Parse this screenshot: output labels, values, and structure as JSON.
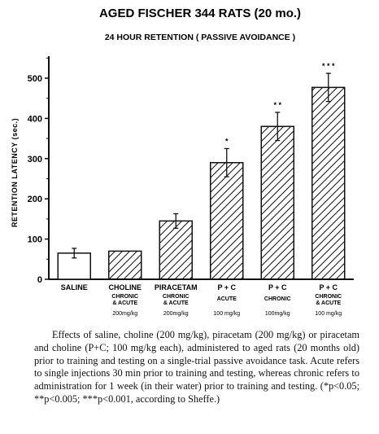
{
  "chart_data": {
    "type": "bar",
    "title": "AGED FISCHER 344 RATS   (20 mo.)",
    "subtitle": "24 HOUR RETENTION   ( PASSIVE AVOIDANCE )",
    "ylabel": "RETENTION LATENCY (sec.)",
    "xlabel": "",
    "ylim": [
      0,
      550
    ],
    "yticks": [
      0,
      100,
      200,
      300,
      400,
      500
    ],
    "grid": false,
    "categories": [
      {
        "label": "SALINE",
        "line2": "",
        "dose": ""
      },
      {
        "label": "CHOLINE",
        "line2": "CHRONIC & ACUTE",
        "dose": "200mg/kg"
      },
      {
        "label": "PIRACETAM",
        "line2": "CHRONIC & ACUTE",
        "dose": "200mg/kg"
      },
      {
        "label": "P + C",
        "line2": "ACUTE",
        "dose": "100 mg/kg"
      },
      {
        "label": "P + C",
        "line2": "CHRONIC",
        "dose": "100mg/kg"
      },
      {
        "label": "P + C",
        "line2": "CHRONIC & ACUTE",
        "dose": "100 mg/kg"
      }
    ],
    "values": [
      65,
      70,
      145,
      290,
      380,
      477
    ],
    "errors": [
      12,
      0,
      18,
      35,
      35,
      35
    ],
    "significance": [
      "",
      "",
      "",
      "*",
      "* *",
      "* * *"
    ],
    "hatched": [
      false,
      true,
      true,
      true,
      true,
      true
    ]
  },
  "caption": "Effects of saline, choline (200 mg/kg), piracetam (200 mg/kg) or piracetam and choline (P+C; 100 mg/kg each), administered to aged rats (20 months old) prior to training and testing on a single-trial passive avoidance task. Acute refers to single injections 30 min prior to training and testing, whereas chronic refers to administration for 1 week (in their water) prior to training and testing. (*p<0.05; **p<0.005; ***p<0.001, according to Sheffe.)"
}
